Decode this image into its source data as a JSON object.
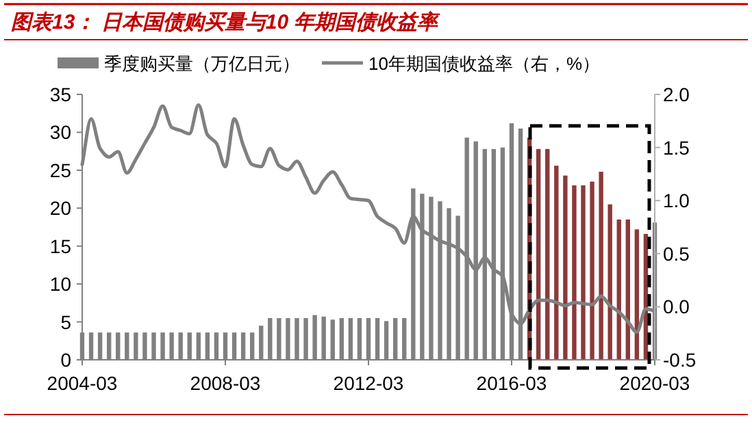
{
  "chart_data": {
    "type": "bar",
    "title": "图表13： 日本国债购买量与10 年期国债收益率",
    "categories": [
      "2004-03",
      null,
      null,
      null,
      null,
      null,
      null,
      null,
      null,
      null,
      null,
      null,
      null,
      null,
      null,
      null,
      "2008-03",
      null,
      null,
      null,
      null,
      null,
      null,
      null,
      null,
      null,
      null,
      null,
      null,
      null,
      null,
      null,
      "2012-03",
      null,
      null,
      null,
      null,
      null,
      null,
      null,
      null,
      null,
      null,
      null,
      null,
      null,
      null,
      null,
      "2016-03",
      null,
      null,
      null,
      null,
      null,
      null,
      null,
      null,
      null,
      null,
      null,
      null,
      null,
      null,
      null,
      "2020-03"
    ],
    "series": [
      {
        "name": "季度购买量（万亿日元）",
        "type": "bar",
        "color": "#808080",
        "colors": [
          "#808080",
          "#808080",
          "#808080",
          "#808080",
          "#808080",
          "#808080",
          "#808080",
          "#808080",
          "#808080",
          "#808080",
          "#808080",
          "#808080",
          "#808080",
          "#808080",
          "#808080",
          "#808080",
          "#808080",
          "#808080",
          "#808080",
          "#808080",
          "#808080",
          "#808080",
          "#808080",
          "#808080",
          "#808080",
          "#808080",
          "#808080",
          "#808080",
          "#808080",
          "#808080",
          "#808080",
          "#808080",
          "#808080",
          "#808080",
          "#808080",
          "#808080",
          "#808080",
          "#808080",
          "#808080",
          "#808080",
          "#808080",
          "#808080",
          "#808080",
          "#808080",
          "#808080",
          "#808080",
          "#808080",
          "#808080",
          "#808080",
          "#808080",
          "#8b3a3a",
          "#8b3a3a",
          "#8b3a3a",
          "#8b3a3a",
          "#8b3a3a",
          "#8b3a3a",
          "#8b3a3a",
          "#8b3a3a",
          "#8b3a3a",
          "#8b3a3a",
          "#8b3a3a",
          "#8b3a3a",
          "#8b3a3a",
          "#8b3a3a",
          "#808080"
        ],
        "values": [
          3.6,
          3.6,
          3.6,
          3.6,
          3.6,
          3.6,
          3.6,
          3.6,
          3.6,
          3.6,
          3.6,
          3.6,
          3.6,
          3.6,
          3.6,
          3.6,
          3.6,
          3.6,
          3.6,
          3.6,
          4.5,
          5.5,
          5.5,
          5.5,
          5.5,
          5.5,
          5.9,
          5.7,
          5.3,
          5.5,
          5.5,
          5.5,
          5.5,
          5.5,
          5.1,
          5.5,
          5.5,
          22.6,
          21.9,
          21.5,
          20.9,
          20.0,
          19.0,
          29.3,
          28.8,
          27.8,
          27.8,
          28.0,
          31.2,
          30.5,
          29.3,
          27.8,
          27.8,
          25.6,
          24.3,
          23.0,
          23.0,
          23.5,
          24.8,
          20.5,
          18.5,
          18.5,
          17.2,
          16.6,
          18.1
        ]
      },
      {
        "name": "10年期国债收益率（右，%）",
        "type": "line",
        "axis": "y2",
        "color": "#808080",
        "values": [
          1.34,
          1.77,
          1.49,
          1.41,
          1.46,
          1.26,
          1.39,
          1.54,
          1.69,
          1.89,
          1.69,
          1.66,
          1.63,
          1.9,
          1.62,
          1.54,
          1.32,
          1.77,
          1.52,
          1.34,
          1.32,
          1.49,
          1.33,
          1.29,
          1.37,
          1.22,
          1.07,
          1.19,
          1.27,
          1.15,
          1.02,
          1.01,
          1.0,
          0.85,
          0.79,
          0.74,
          0.6,
          0.85,
          0.72,
          0.67,
          0.62,
          0.59,
          0.55,
          0.47,
          0.35,
          0.46,
          0.35,
          0.29,
          -0.07,
          -0.16,
          -0.03,
          0.06,
          0.06,
          0.04,
          0.01,
          0.04,
          0.03,
          0.02,
          0.1,
          0.01,
          -0.05,
          -0.14,
          -0.24,
          -0.02,
          -0.04
        ]
      }
    ],
    "ylim": [
      0,
      35
    ],
    "yticks": [
      0,
      5,
      10,
      15,
      20,
      25,
      30,
      35
    ],
    "y2lim": [
      -0.5,
      2.0
    ],
    "y2ticks": [
      {
        "value": -0.5,
        "label": "-0.5"
      },
      {
        "value": 0,
        "label": "0.0"
      },
      {
        "value": 0.5,
        "label": "0.5"
      },
      {
        "value": 1,
        "label": "1.0"
      },
      {
        "value": 1.5,
        "label": "1.5"
      },
      {
        "value": 2,
        "label": "2.0"
      }
    ],
    "legend": "top",
    "grid": false
  }
}
